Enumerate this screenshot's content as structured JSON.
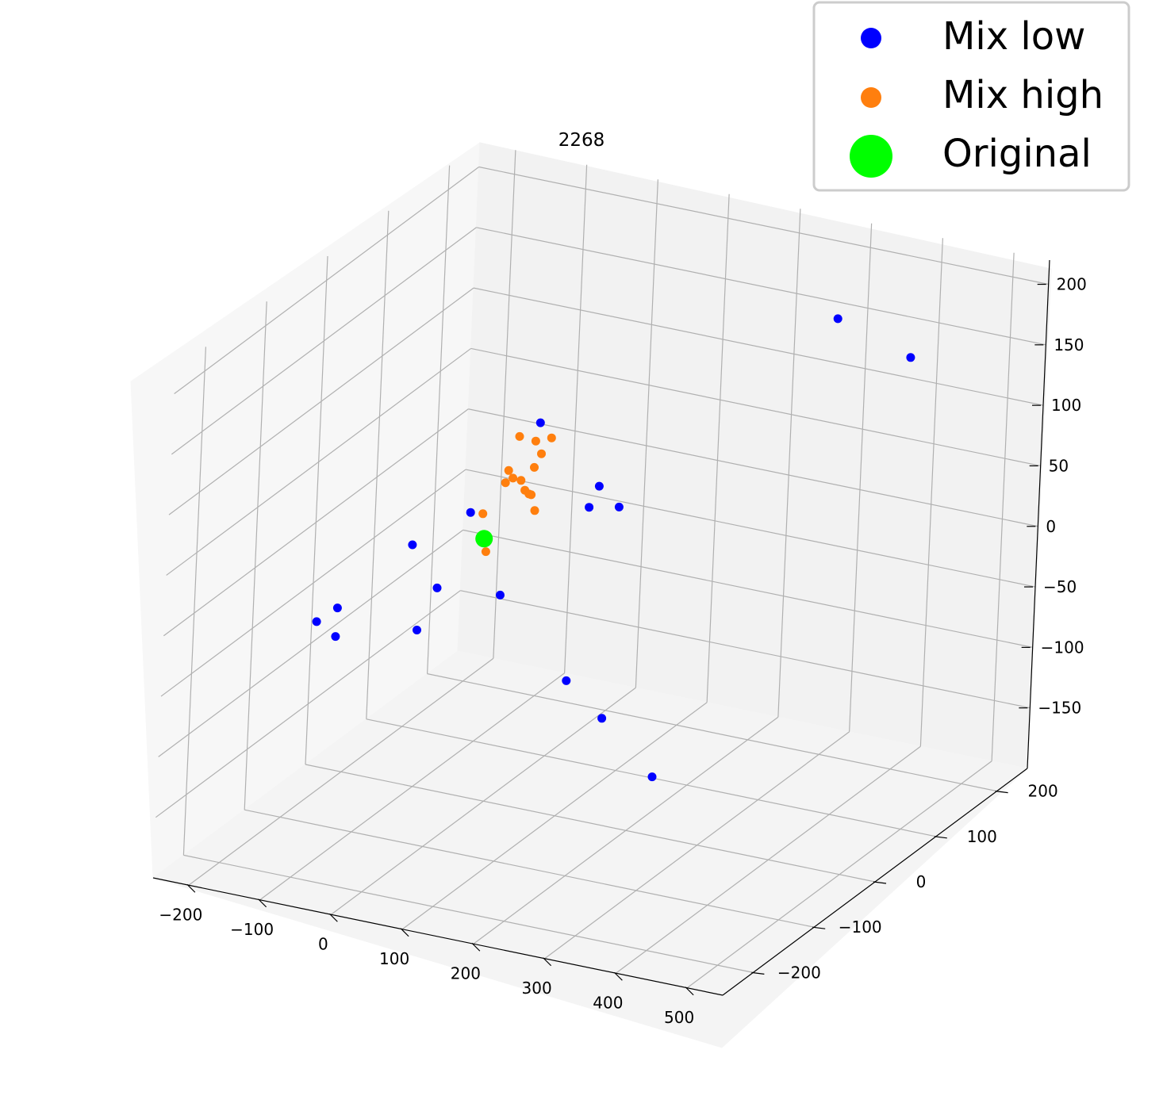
{
  "chart_data": {
    "type": "scatter",
    "title": "2268",
    "grid": true,
    "legend": {
      "placement": "top-right"
    },
    "xlim": [
      -250,
      550
    ],
    "ylim": [
      -250,
      250
    ],
    "zlim": [
      -200,
      220
    ],
    "x_ticks": [
      -200,
      -100,
      0,
      100,
      200,
      300,
      400,
      500
    ],
    "y_ticks": [
      -200,
      -100,
      0,
      100,
      200
    ],
    "z_ticks": [
      -150,
      -100,
      -50,
      0,
      50,
      100,
      150,
      200
    ],
    "x_tick_labels": [
      "−200",
      "−100",
      "0",
      "100",
      "200",
      "300",
      "400",
      "500"
    ],
    "y_tick_labels": [
      "−200",
      "−100",
      "0",
      "100",
      "200"
    ],
    "z_tick_labels": [
      "−150",
      "−100",
      "−50",
      "0",
      "50",
      "100",
      "150",
      "200"
    ],
    "series": [
      {
        "name": "Mix low",
        "color": "#0000ff",
        "points": [
          [
            -180,
            80,
            -40
          ],
          [
            -120,
            -150,
            -10
          ],
          [
            -60,
            30,
            20
          ],
          [
            -100,
            -140,
            0
          ],
          [
            -60,
            -190,
            0
          ],
          [
            20,
            -150,
            0
          ],
          [
            -20,
            -70,
            0
          ],
          [
            40,
            20,
            110
          ],
          [
            300,
            200,
            160
          ],
          [
            420,
            180,
            150
          ],
          [
            130,
            50,
            40
          ],
          [
            190,
            -100,
            -40
          ],
          [
            250,
            -110,
            -60
          ],
          [
            340,
            -130,
            -90
          ],
          [
            60,
            -60,
            0
          ],
          [
            80,
            60,
            30
          ],
          [
            60,
            100,
            30
          ]
        ]
      },
      {
        "name": "Mix high",
        "color": "#ff7f0e",
        "points": [
          [
            0,
            40,
            50
          ],
          [
            10,
            35,
            45
          ],
          [
            15,
            40,
            40
          ],
          [
            20,
            30,
            45
          ],
          [
            25,
            35,
            30
          ],
          [
            5,
            20,
            60
          ],
          [
            30,
            25,
            70
          ],
          [
            35,
            30,
            80
          ],
          [
            40,
            40,
            90
          ],
          [
            20,
            10,
            100
          ],
          [
            10,
            50,
            80
          ],
          [
            -5,
            20,
            55
          ],
          [
            -10,
            -10,
            40
          ],
          [
            -20,
            10,
            0
          ],
          [
            15,
            0,
            75
          ]
        ]
      },
      {
        "name": "Original",
        "color": "#00ff00",
        "points": [
          [
            -15,
            0,
            15
          ]
        ]
      }
    ]
  }
}
